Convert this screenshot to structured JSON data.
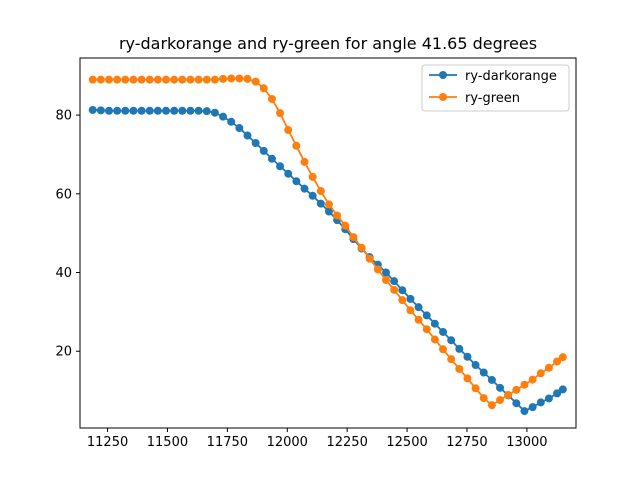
{
  "chart_data": {
    "type": "line",
    "title": "ry-darkorange and ry-green for angle 41.65 degrees",
    "xlabel": "",
    "ylabel": "",
    "xlim": [
      11135,
      13205
    ],
    "ylim": [
      0.5,
      94.5
    ],
    "xticks": [
      11250,
      11500,
      11750,
      12000,
      12250,
      12500,
      12750,
      13000
    ],
    "yticks": [
      20,
      40,
      60,
      80
    ],
    "grid": false,
    "legend": "top-right",
    "series": [
      {
        "name": "ry-darkorange",
        "color": "#1f77b4",
        "x": [
          11188,
          11222,
          11256,
          11290,
          11324,
          11358,
          11392,
          11426,
          11460,
          11494,
          11528,
          11562,
          11596,
          11630,
          11664,
          11698,
          11732,
          11766,
          11800,
          11834,
          11868,
          11902,
          11936,
          11970,
          12004,
          12038,
          12072,
          12106,
          12140,
          12174,
          12208,
          12242,
          12276,
          12310,
          12344,
          12378,
          12412,
          12446,
          12480,
          12514,
          12548,
          12582,
          12616,
          12650,
          12684,
          12718,
          12752,
          12786,
          12820,
          12854,
          12888,
          12922,
          12956,
          12990,
          13024,
          13058,
          13092,
          13126,
          13150
        ],
        "y": [
          81.3,
          81.2,
          81.1,
          81.1,
          81.1,
          81.1,
          81.1,
          81.1,
          81.1,
          81.1,
          81.1,
          81.1,
          81.1,
          81.1,
          81.0,
          80.6,
          79.6,
          78.3,
          76.7,
          74.8,
          72.9,
          70.9,
          68.9,
          67.0,
          65.1,
          63.2,
          61.3,
          59.5,
          57.5,
          55.5,
          53.3,
          51.0,
          48.5,
          46.1,
          43.9,
          42.0,
          40.0,
          37.8,
          35.5,
          33.3,
          31.2,
          29.1,
          27.0,
          24.9,
          22.8,
          20.6,
          18.6,
          16.5,
          14.6,
          12.7,
          10.7,
          8.8,
          6.8,
          4.8,
          5.8,
          7.0,
          8.0,
          9.3,
          10.3
        ]
      },
      {
        "name": "ry-green",
        "color": "#ff7f0e",
        "x": [
          11188,
          11222,
          11256,
          11290,
          11324,
          11358,
          11392,
          11426,
          11460,
          11494,
          11528,
          11562,
          11596,
          11630,
          11664,
          11698,
          11732,
          11766,
          11800,
          11834,
          11868,
          11902,
          11936,
          11970,
          12004,
          12038,
          12072,
          12106,
          12140,
          12174,
          12208,
          12242,
          12276,
          12310,
          12344,
          12378,
          12412,
          12446,
          12480,
          12514,
          12548,
          12582,
          12616,
          12650,
          12684,
          12718,
          12752,
          12786,
          12820,
          12854,
          12888,
          12922,
          12956,
          12990,
          13024,
          13058,
          13092,
          13126,
          13150
        ],
        "y": [
          89.0,
          89.0,
          89.0,
          89.0,
          89.0,
          89.0,
          89.0,
          89.0,
          89.0,
          89.0,
          89.0,
          89.0,
          89.0,
          89.0,
          89.0,
          89.0,
          89.2,
          89.3,
          89.3,
          89.2,
          88.5,
          86.8,
          84.1,
          80.5,
          76.2,
          72.2,
          68.1,
          64.3,
          60.7,
          57.3,
          54.5,
          51.9,
          49.0,
          46.3,
          43.5,
          40.8,
          38.1,
          35.6,
          33.0,
          30.4,
          28.0,
          25.6,
          23.0,
          20.5,
          18.0,
          15.5,
          13.1,
          10.6,
          8.1,
          6.3,
          7.6,
          8.9,
          10.2,
          11.5,
          12.8,
          14.4,
          15.8,
          17.4,
          18.5
        ]
      }
    ]
  }
}
